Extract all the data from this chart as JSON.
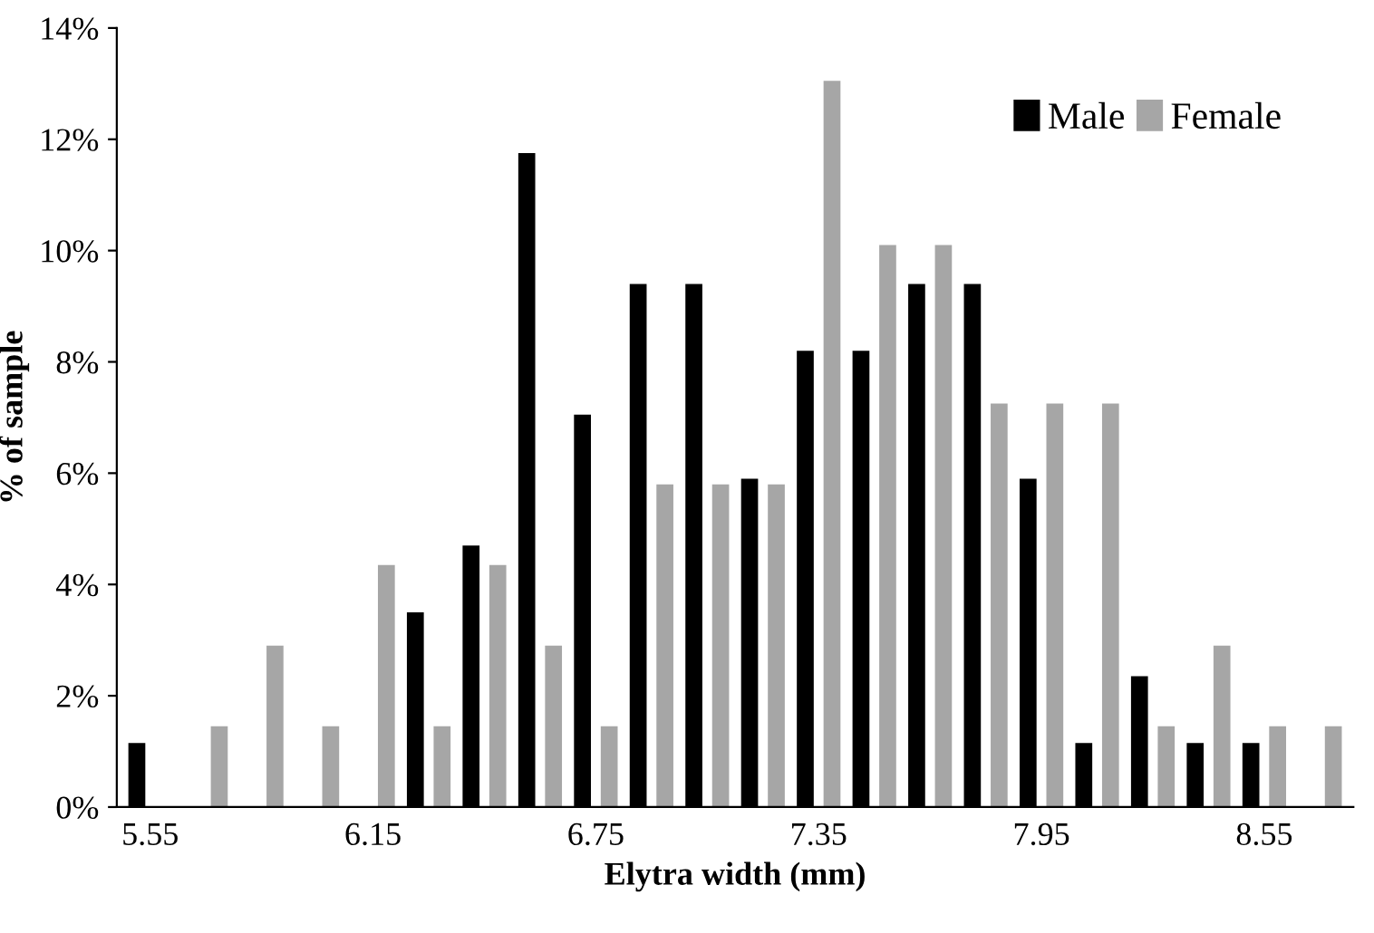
{
  "chart_data": {
    "type": "bar",
    "xlabel": "Elytra width (mm)",
    "ylabel": "% of sample",
    "categories": [
      "5.55",
      null,
      null,
      null,
      "6.15",
      null,
      null,
      null,
      "6.75",
      null,
      null,
      null,
      "7.35",
      null,
      null,
      null,
      "7.95",
      null,
      null,
      null,
      "8.55",
      null
    ],
    "series": [
      {
        "name": "Male",
        "color": "#000000",
        "values": [
          1.15,
          0,
          0,
          0,
          0,
          3.5,
          4.7,
          11.75,
          7.05,
          9.4,
          9.4,
          5.9,
          8.2,
          8.2,
          9.4,
          9.4,
          5.9,
          1.15,
          2.35,
          1.15,
          1.15,
          0
        ]
      },
      {
        "name": "Female",
        "color": "#a6a6a6",
        "values": [
          0,
          1.45,
          2.9,
          1.45,
          4.35,
          1.45,
          4.35,
          2.9,
          1.45,
          5.8,
          5.8,
          5.8,
          13.05,
          10.1,
          10.1,
          7.25,
          7.25,
          7.25,
          1.45,
          2.9,
          1.45,
          1.45
        ]
      }
    ],
    "ylim": [
      0,
      14
    ],
    "yticks": [
      {
        "value": 0,
        "label": "0%"
      },
      {
        "value": 2,
        "label": "2%"
      },
      {
        "value": 4,
        "label": "4%"
      },
      {
        "value": 6,
        "label": "6%"
      },
      {
        "value": 8,
        "label": "8%"
      },
      {
        "value": 10,
        "label": "10%"
      },
      {
        "value": 12,
        "label": "12%"
      },
      {
        "value": 14,
        "label": "14%"
      }
    ],
    "legend": "top right",
    "grid": false
  }
}
